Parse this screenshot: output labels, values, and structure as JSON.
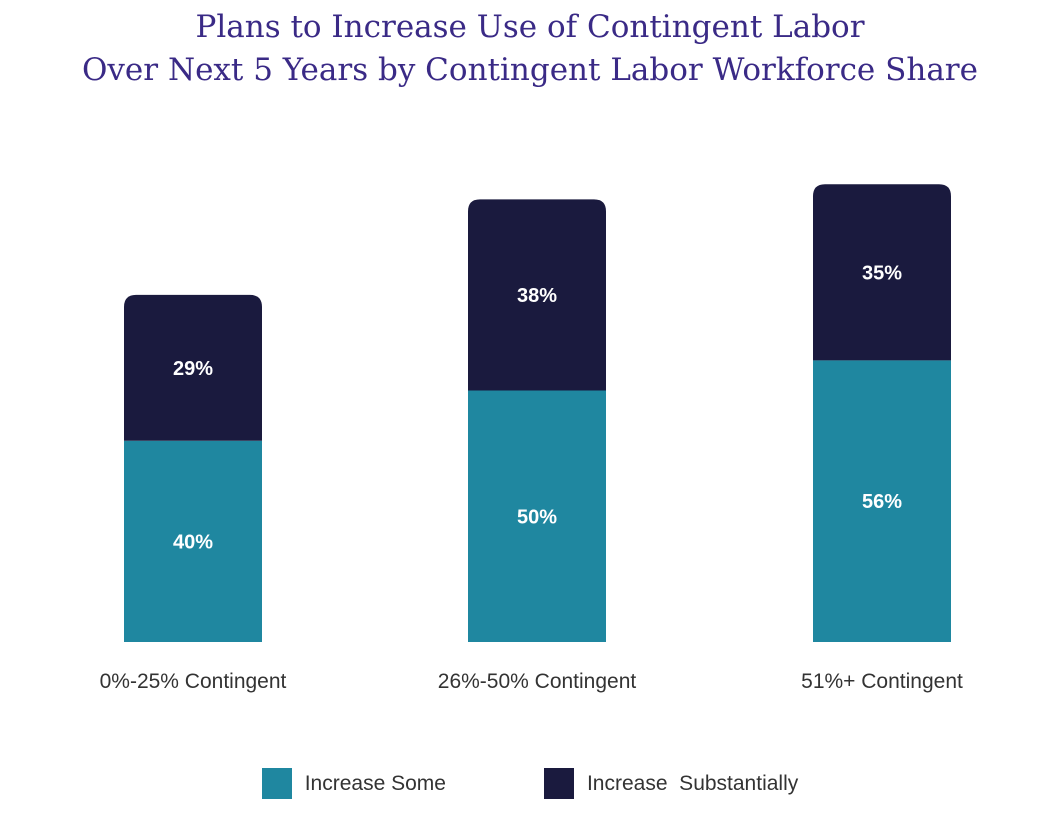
{
  "chart_data": {
    "type": "bar",
    "stacked": true,
    "title": "Plans to Increase Use of Contingent Labor Over Next 5 Years by Contingent Labor Workforce Share",
    "title_lines": [
      "Plans to Increase Use of Contingent Labor",
      "Over Next 5 Years by Contingent Labor Workforce Share"
    ],
    "categories": [
      "0%-25% Contingent",
      "26%-50% Contingent",
      "51%+ Contingent"
    ],
    "series": [
      {
        "name": "Increase Some",
        "values": [
          40,
          50,
          56
        ],
        "labels": [
          "40%",
          "50%",
          "56%"
        ],
        "color": "#1f87a0"
      },
      {
        "name": "Increase  Substantially",
        "values": [
          29,
          38,
          35
        ],
        "labels": [
          "29%",
          "38%",
          "35%"
        ],
        "color": "#1a1a3e"
      }
    ],
    "xlabel": "",
    "ylabel": "",
    "ylim": [
      0,
      100
    ],
    "grid": false,
    "legend_position": "bottom"
  }
}
